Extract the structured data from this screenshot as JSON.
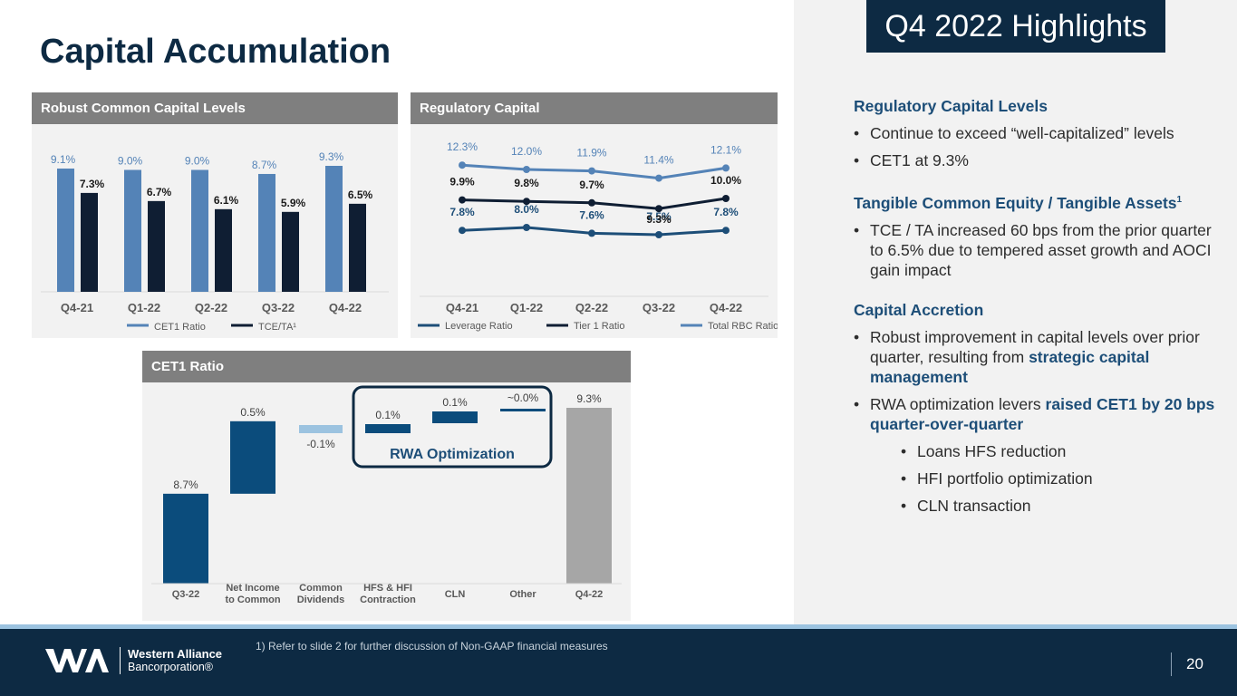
{
  "page_title": "Capital Accumulation",
  "badge": "Q4 2022 Highlights",
  "panel1": {
    "header": "Robust Common Capital Levels",
    "legend": [
      "CET1 Ratio",
      "TCE/TA¹"
    ],
    "chart_data": {
      "type": "bar",
      "title": "Robust Common Capital Levels",
      "categories": [
        "Q4-21",
        "Q1-22",
        "Q2-22",
        "Q3-22",
        "Q4-22"
      ],
      "series": [
        {
          "name": "CET1 Ratio",
          "values": [
            9.1,
            9.0,
            9.0,
            8.7,
            9.3
          ],
          "labels": [
            "9.1%",
            "9.0%",
            "9.0%",
            "8.7%",
            "9.3%"
          ],
          "color": "#5483b7"
        },
        {
          "name": "TCE/TA¹",
          "values": [
            7.3,
            6.7,
            6.1,
            5.9,
            6.5
          ],
          "labels": [
            "7.3%",
            "6.7%",
            "6.1%",
            "5.9%",
            "6.5%"
          ],
          "color": "#0f1e33"
        }
      ],
      "ylim": [
        0,
        9.3
      ]
    }
  },
  "panel2": {
    "header": "Regulatory Capital",
    "legend": [
      "Leverage Ratio",
      "Tier 1 Ratio",
      "Total RBC Ratio"
    ],
    "chart_data": {
      "type": "line",
      "title": "Regulatory Capital",
      "categories": [
        "Q4-21",
        "Q1-22",
        "Q2-22",
        "Q3-22",
        "Q4-22"
      ],
      "series": [
        {
          "name": "Leverage Ratio",
          "values": [
            7.8,
            8.0,
            7.6,
            7.5,
            7.8
          ],
          "labels": [
            "7.8%",
            "8.0%",
            "7.6%",
            "7.5%",
            "7.8%"
          ],
          "color": "#1d4e78"
        },
        {
          "name": "Tier 1 Ratio",
          "values": [
            9.9,
            9.8,
            9.7,
            9.3,
            10.0
          ],
          "labels": [
            "9.9%",
            "9.8%",
            "9.7%",
            "9.3%",
            "10.0%"
          ],
          "color": "#0f1e33"
        },
        {
          "name": "Total RBC Ratio",
          "values": [
            12.3,
            12.0,
            11.9,
            11.4,
            12.1
          ],
          "labels": [
            "12.3%",
            "12.0%",
            "11.9%",
            "11.4%",
            "12.1%"
          ],
          "color": "#5483b7"
        }
      ]
    }
  },
  "panel3": {
    "header": "CET1 Ratio",
    "annotation": "RWA Optimization",
    "chart_data": {
      "type": "bar",
      "subtype": "waterfall",
      "title": "CET1 Ratio",
      "categories": [
        "Q3-22",
        "Net Income to Common",
        "Common Dividends",
        "HFS & HFI Contraction",
        "CLN",
        "Other",
        "Q4-22"
      ],
      "values": [
        8.7,
        0.5,
        -0.1,
        0.1,
        0.1,
        0.0,
        9.3
      ],
      "labels": [
        "8.7%",
        "0.5%",
        "-0.1%",
        "0.1%",
        "0.1%",
        "~0.0%",
        "9.3%"
      ],
      "kinds": [
        "total",
        "delta",
        "delta",
        "delta",
        "delta",
        "delta",
        "total"
      ],
      "colors": [
        "#0b4c7c",
        "#0b4c7c",
        "#9cc3e0",
        "#0b4c7c",
        "#0b4c7c",
        "#0b4c7c",
        "#a6a6a6"
      ]
    }
  },
  "highlights": {
    "s1": {
      "title": "Regulatory Capital Levels",
      "b1": "Continue to exceed “well-capitalized” levels",
      "b2": "CET1 at 9.3%"
    },
    "s2": {
      "title": "Tangible Common Equity / Tangible Assets",
      "title_sup": "1",
      "b1": "TCE / TA increased 60 bps from the prior quarter to 6.5% due to tempered asset growth and AOCI gain impact"
    },
    "s3": {
      "title": "Capital Accretion",
      "b1_pre": "Robust improvement in capital levels over prior quarter, resulting from ",
      "b1_hl": "strategic capital management",
      "b2_pre": "RWA optimization levers ",
      "b2_hl": "raised CET1 by 20 bps quarter-over-quarter",
      "subs": [
        "Loans HFS reduction",
        "HFI portfolio optimization",
        "CLN transaction"
      ]
    },
    "bullet_char": "•"
  },
  "footer": {
    "footnote": "1)    Refer to slide 2 for further discussion of Non-GAAP financial measures",
    "logo_line1": "Western Alliance",
    "logo_line2": "Bancorporation®",
    "page_number": "20"
  }
}
